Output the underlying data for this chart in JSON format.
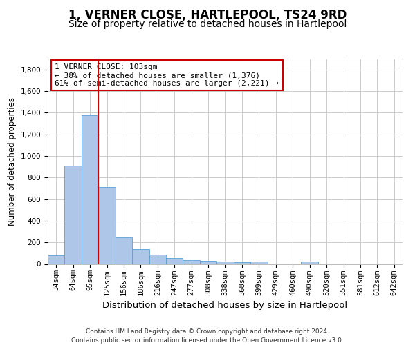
{
  "title": "1, VERNER CLOSE, HARTLEPOOL, TS24 9RD",
  "subtitle": "Size of property relative to detached houses in Hartlepool",
  "xlabel": "Distribution of detached houses by size in Hartlepool",
  "ylabel": "Number of detached properties",
  "categories": [
    "34sqm",
    "64sqm",
    "95sqm",
    "125sqm",
    "156sqm",
    "186sqm",
    "216sqm",
    "247sqm",
    "277sqm",
    "308sqm",
    "338sqm",
    "368sqm",
    "399sqm",
    "429sqm",
    "460sqm",
    "490sqm",
    "520sqm",
    "551sqm",
    "581sqm",
    "612sqm",
    "642sqm"
  ],
  "values": [
    82,
    910,
    1376,
    715,
    247,
    140,
    85,
    55,
    32,
    30,
    20,
    15,
    20,
    0,
    0,
    20,
    0,
    0,
    0,
    0,
    0
  ],
  "bar_color": "#aec6e8",
  "bar_edgecolor": "#5a9fd4",
  "vline_color": "#cc0000",
  "annotation_line1": "1 VERNER CLOSE: 103sqm",
  "annotation_line2": "← 38% of detached houses are smaller (1,376)",
  "annotation_line3": "61% of semi-detached houses are larger (2,221) →",
  "box_color": "#cc0000",
  "ylim": [
    0,
    1900
  ],
  "yticks": [
    0,
    200,
    400,
    600,
    800,
    1000,
    1200,
    1400,
    1600,
    1800
  ],
  "grid_color": "#cccccc",
  "background_color": "#ffffff",
  "footer_line1": "Contains HM Land Registry data © Crown copyright and database right 2024.",
  "footer_line2": "Contains public sector information licensed under the Open Government Licence v3.0.",
  "title_fontsize": 12,
  "subtitle_fontsize": 10,
  "xlabel_fontsize": 9.5,
  "ylabel_fontsize": 8.5,
  "tick_fontsize": 7.5,
  "annotation_fontsize": 8,
  "footer_fontsize": 6.5
}
